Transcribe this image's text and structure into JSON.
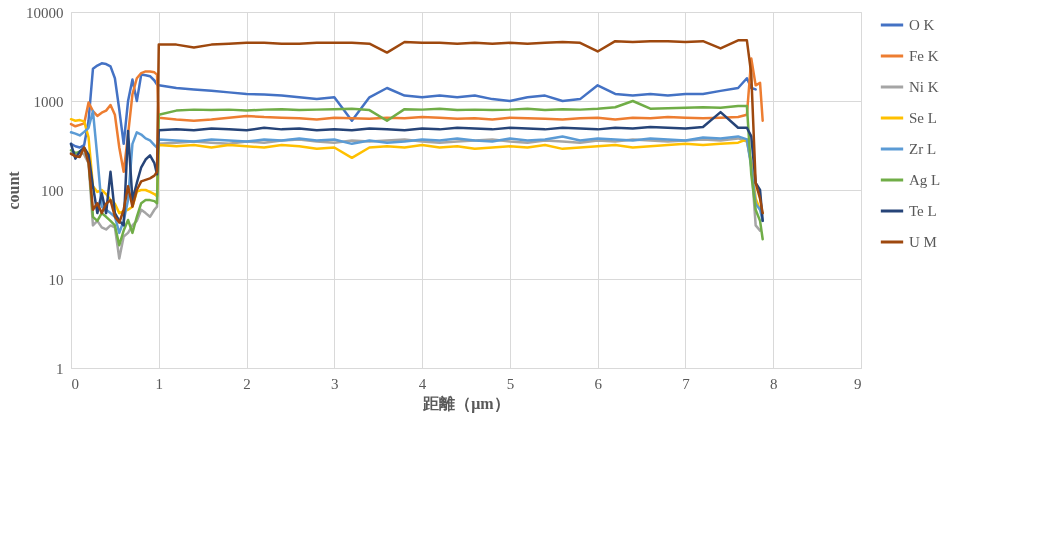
{
  "chart_data": {
    "type": "line",
    "xlabel": "距離（μm）",
    "ylabel": "count",
    "log": "y",
    "grid": true,
    "legend": "right",
    "xlim": [
      0,
      9
    ],
    "xticks": [
      0,
      1,
      2,
      3,
      4,
      5,
      6,
      7,
      8,
      9
    ],
    "ylim": [
      1,
      10000
    ],
    "yticks": [
      1,
      10,
      100,
      1000,
      10000
    ],
    "x": [
      0,
      0.05,
      0.1,
      0.15,
      0.2,
      0.25,
      0.3,
      0.35,
      0.4,
      0.45,
      0.5,
      0.55,
      0.6,
      0.65,
      0.7,
      0.75,
      0.8,
      0.85,
      0.9,
      0.95,
      0.98,
      1.0,
      1.2,
      1.4,
      1.6,
      1.8,
      2.0,
      2.2,
      2.4,
      2.6,
      2.8,
      3.0,
      3.2,
      3.4,
      3.6,
      3.8,
      4.0,
      4.2,
      4.4,
      4.6,
      4.8,
      5.0,
      5.2,
      5.4,
      5.6,
      5.8,
      6.0,
      6.2,
      6.4,
      6.6,
      6.8,
      7.0,
      7.2,
      7.4,
      7.6,
      7.7,
      7.75,
      7.8,
      7.85,
      7.88
    ],
    "series": [
      {
        "name": "O K",
        "color": "#4472c4",
        "values": [
          330,
          310,
          300,
          320,
          600,
          2300,
          2500,
          2650,
          2600,
          2450,
          1800,
          800,
          330,
          1000,
          1740,
          1000,
          1980,
          1950,
          1900,
          1700,
          1530,
          1500,
          1400,
          1350,
          1300,
          1250,
          1200,
          1180,
          1150,
          1100,
          1050,
          1100,
          600,
          1100,
          1400,
          1150,
          1100,
          1150,
          1100,
          1150,
          1050,
          1000,
          1100,
          1150,
          1000,
          1050,
          1500,
          1200,
          1150,
          1200,
          1150,
          1200,
          1200,
          1300,
          1400,
          1800,
          1400,
          1350,
          null,
          null
        ]
      },
      {
        "name": "Fe K",
        "color": "#ed7d31",
        "values": [
          550,
          520,
          540,
          560,
          960,
          770,
          680,
          740,
          780,
          900,
          700,
          300,
          160,
          420,
          1190,
          1800,
          2060,
          2150,
          2150,
          2100,
          1980,
          650,
          620,
          600,
          620,
          650,
          680,
          660,
          650,
          640,
          620,
          650,
          640,
          630,
          650,
          640,
          660,
          650,
          630,
          640,
          620,
          650,
          640,
          630,
          620,
          640,
          650,
          620,
          650,
          640,
          660,
          650,
          640,
          650,
          660,
          700,
          3000,
          1500,
          1600,
          600
        ]
      },
      {
        "name": "Ni K",
        "color": "#a5a5a5",
        "values": [
          260,
          240,
          270,
          250,
          200,
          40,
          45,
          38,
          36,
          40,
          38,
          17,
          30,
          33,
          40,
          45,
          60,
          55,
          50,
          60,
          65,
          330,
          340,
          350,
          340,
          330,
          350,
          340,
          360,
          370,
          350,
          340,
          360,
          350,
          360,
          370,
          350,
          340,
          350,
          360,
          370,
          350,
          340,
          360,
          350,
          340,
          360,
          350,
          370,
          360,
          350,
          360,
          370,
          360,
          380,
          350,
          200,
          40,
          35,
          null
        ]
      },
      {
        "name": "Se L",
        "color": "#ffc000",
        "values": [
          625,
          600,
          610,
          590,
          390,
          110,
          95,
          100,
          90,
          77,
          70,
          55,
          58,
          60,
          65,
          96,
          100,
          100,
          95,
          90,
          85,
          320,
          310,
          320,
          300,
          320,
          310,
          300,
          320,
          310,
          290,
          300,
          230,
          300,
          310,
          300,
          320,
          300,
          310,
          290,
          300,
          310,
          300,
          320,
          290,
          300,
          310,
          320,
          300,
          310,
          320,
          330,
          320,
          330,
          340,
          370,
          200,
          80,
          60,
          55
        ]
      },
      {
        "name": "Zr L",
        "color": "#5b9bd5",
        "values": [
          445,
          430,
          410,
          450,
          500,
          770,
          235,
          65,
          60,
          55,
          50,
          33,
          45,
          77,
          330,
          445,
          420,
          380,
          360,
          320,
          300,
          370,
          360,
          350,
          370,
          360,
          350,
          370,
          360,
          380,
          360,
          370,
          330,
          360,
          340,
          350,
          370,
          360,
          380,
          360,
          350,
          380,
          360,
          370,
          400,
          360,
          380,
          370,
          360,
          380,
          370,
          360,
          390,
          380,
          400,
          370,
          180,
          70,
          60,
          45
        ]
      },
      {
        "name": "Ag L",
        "color": "#70ad47",
        "values": [
          280,
          260,
          270,
          290,
          220,
          50,
          45,
          55,
          50,
          45,
          40,
          24,
          35,
          46,
          33,
          50,
          71,
          77,
          77,
          75,
          71,
          700,
          780,
          800,
          790,
          800,
          780,
          800,
          810,
          790,
          800,
          810,
          820,
          790,
          600,
          810,
          800,
          820,
          790,
          800,
          790,
          800,
          820,
          790,
          810,
          800,
          820,
          850,
          1000,
          820,
          830,
          840,
          850,
          840,
          880,
          880,
          150,
          60,
          45,
          28
        ]
      },
      {
        "name": "Te L",
        "color": "#264478",
        "values": [
          330,
          225,
          270,
          300,
          250,
          110,
          55,
          92,
          55,
          160,
          55,
          45,
          40,
          460,
          77,
          120,
          180,
          220,
          245,
          200,
          150,
          470,
          480,
          470,
          490,
          480,
          470,
          500,
          480,
          490,
          470,
          480,
          470,
          490,
          480,
          470,
          490,
          480,
          500,
          490,
          480,
          500,
          490,
          480,
          500,
          490,
          480,
          500,
          490,
          510,
          500,
          490,
          510,
          750,
          500,
          500,
          400,
          120,
          100,
          45
        ]
      },
      {
        "name": "U M",
        "color": "#9e480e",
        "values": [
          255,
          240,
          235,
          300,
          200,
          60,
          71,
          55,
          70,
          77,
          50,
          43,
          60,
          110,
          65,
          100,
          125,
          130,
          135,
          145,
          160,
          4300,
          4300,
          4000,
          4300,
          4400,
          4500,
          4500,
          4400,
          4400,
          4500,
          4500,
          4500,
          4400,
          3500,
          4600,
          4500,
          4500,
          4400,
          4500,
          4400,
          4500,
          4400,
          4500,
          4600,
          4500,
          3600,
          4700,
          4600,
          4700,
          4700,
          4600,
          4700,
          3900,
          4800,
          4800,
          2000,
          120,
          80,
          55
        ]
      }
    ]
  }
}
